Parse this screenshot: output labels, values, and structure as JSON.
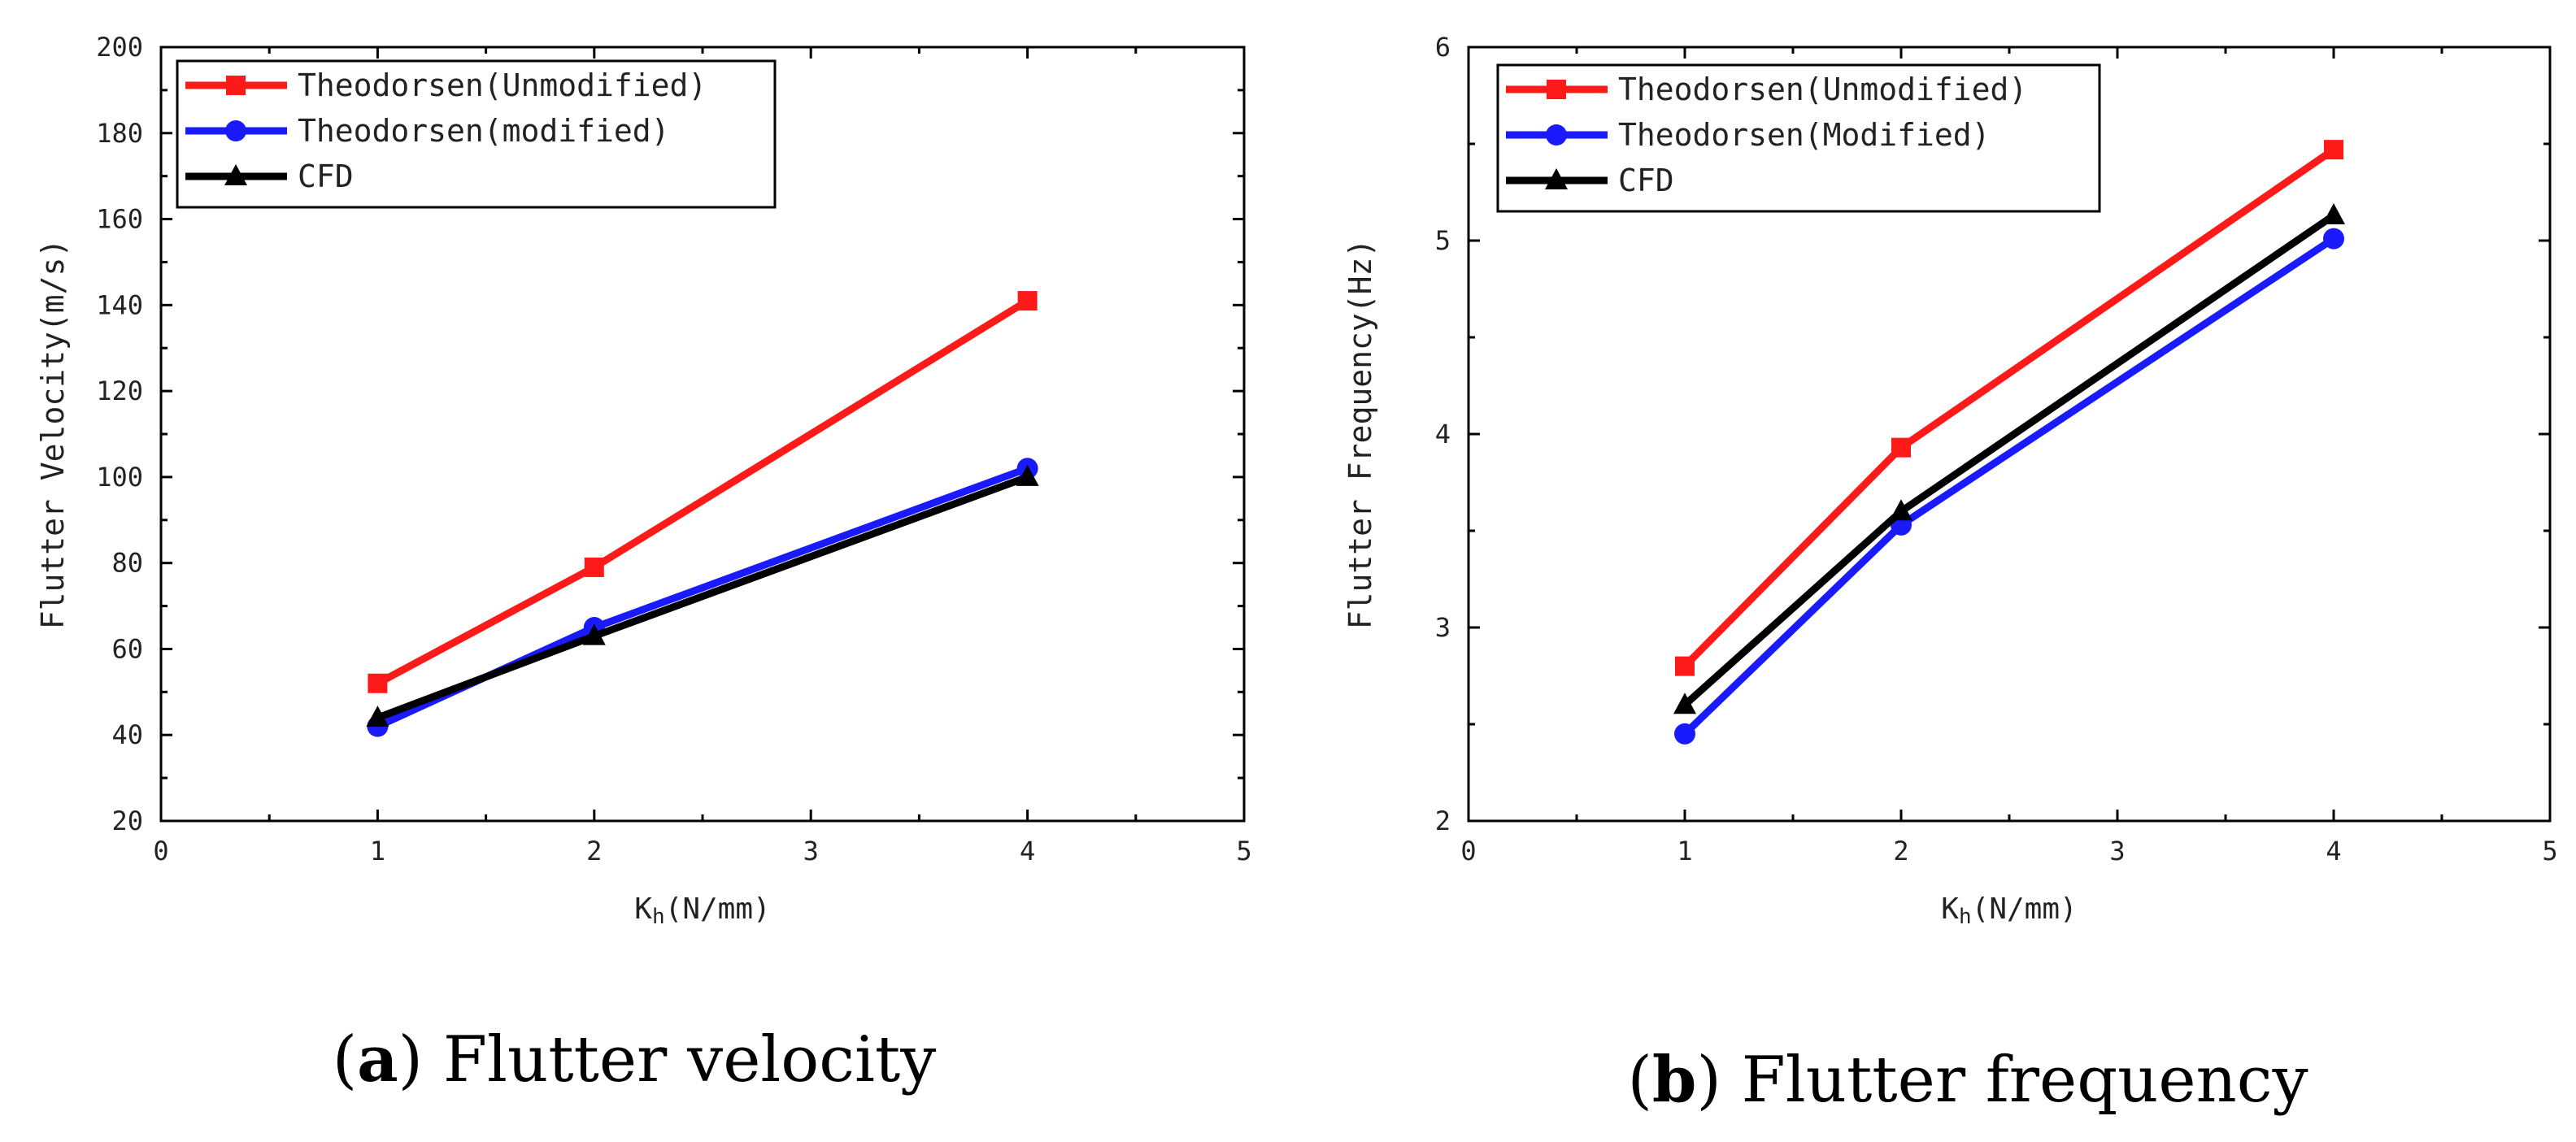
{
  "chart_data": [
    {
      "type": "line",
      "x": [
        1,
        2,
        4
      ],
      "xlabel_main": "K",
      "xlabel_sub": "h",
      "xlabel_unit": "(N/mm)",
      "ylabel": "Flutter Velocity(m/s)",
      "xlim": [
        0,
        5
      ],
      "ylim": [
        20,
        200
      ],
      "xticks": [
        0,
        1,
        2,
        3,
        4,
        5
      ],
      "yticks": [
        20,
        40,
        60,
        80,
        100,
        120,
        140,
        160,
        180,
        200
      ],
      "grid": false,
      "legend_position": "top-left",
      "series": [
        {
          "name": "Theodorsen(Unmodified)",
          "values": [
            52,
            79,
            141
          ],
          "color": "#ff1a1a",
          "marker": "square"
        },
        {
          "name": "Theodorsen(modified)",
          "values": [
            42,
            65,
            102
          ],
          "color": "#1a1aff",
          "marker": "circle"
        },
        {
          "name": "CFD",
          "values": [
            44,
            63,
            100
          ],
          "color": "#000000",
          "marker": "triangle"
        }
      ],
      "caption_letter": "a",
      "caption_text": "Flutter velocity"
    },
    {
      "type": "line",
      "x": [
        1,
        2,
        4
      ],
      "xlabel_main": "K",
      "xlabel_sub": "h",
      "xlabel_unit": "(N/mm)",
      "ylabel": "Flutter Frequency(Hz)",
      "xlim": [
        0,
        5
      ],
      "ylim": [
        2,
        6
      ],
      "xticks": [
        0,
        1,
        2,
        3,
        4,
        5
      ],
      "yticks": [
        2,
        3,
        4,
        5,
        6
      ],
      "grid": false,
      "legend_position": "top-left",
      "series": [
        {
          "name": "Theodorsen(Unmodified)",
          "values": [
            2.8,
            3.93,
            5.47
          ],
          "color": "#ff1a1a",
          "marker": "square"
        },
        {
          "name": "Theodorsen(Modified)",
          "values": [
            2.45,
            3.53,
            5.01
          ],
          "color": "#1a1aff",
          "marker": "circle"
        },
        {
          "name": "CFD",
          "values": [
            2.6,
            3.6,
            5.13
          ],
          "color": "#000000",
          "marker": "triangle"
        }
      ],
      "caption_letter": "b",
      "caption_text": "Flutter frequency"
    }
  ]
}
